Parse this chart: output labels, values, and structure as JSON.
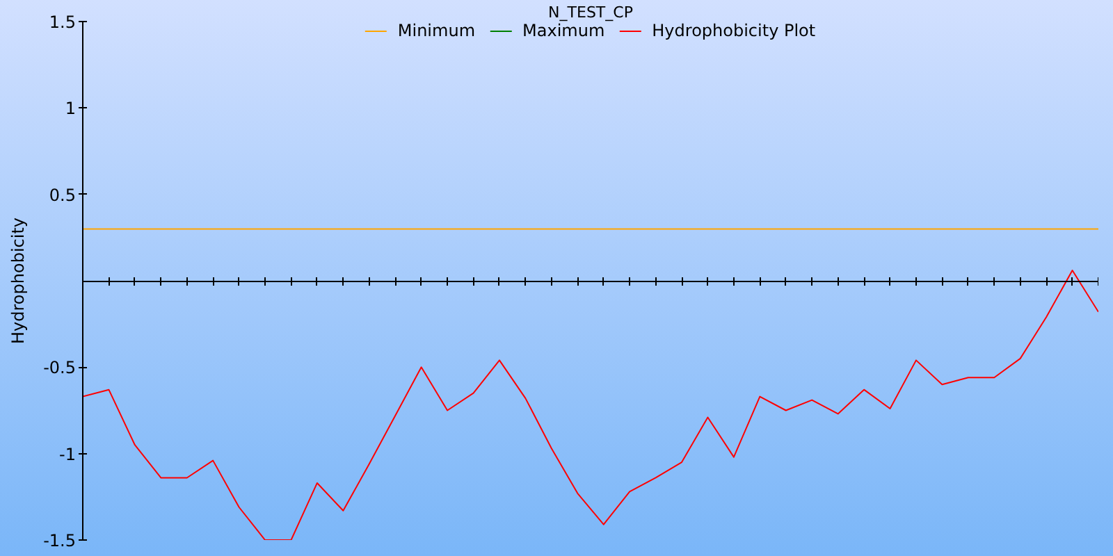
{
  "chart_data": {
    "type": "line",
    "title": "N_TEST_CP",
    "ylabel": "Hydrophobicity",
    "categories": [
      null,
      null,
      null,
      null,
      null,
      null,
      null,
      null,
      null,
      null,
      null,
      null,
      null,
      null,
      null,
      null,
      null,
      null,
      null,
      null,
      null,
      null,
      null,
      null,
      null,
      null,
      null,
      null,
      null,
      null,
      null,
      null,
      null,
      null,
      null,
      null,
      null,
      null,
      null,
      null
    ],
    "series": [
      {
        "name": "Minimum",
        "color": "#ffa500",
        "values": [
          0.3,
          0.3,
          0.3,
          0.3,
          0.3,
          0.3,
          0.3,
          0.3,
          0.3,
          0.3,
          0.3,
          0.3,
          0.3,
          0.3,
          0.3,
          0.3,
          0.3,
          0.3,
          0.3,
          0.3,
          0.3,
          0.3,
          0.3,
          0.3,
          0.3,
          0.3,
          0.3,
          0.3,
          0.3,
          0.3,
          0.3,
          0.3,
          0.3,
          0.3,
          0.3,
          0.3,
          0.3,
          0.3,
          0.3,
          0.3
        ]
      },
      {
        "name": "Maximum",
        "color": "#008000",
        "values": [
          null,
          null,
          null,
          null,
          null,
          null,
          null,
          null,
          null,
          null,
          null,
          null,
          null,
          null,
          null,
          null,
          null,
          null,
          null,
          null,
          null,
          null,
          null,
          null,
          null,
          null,
          null,
          null,
          null,
          null,
          null,
          null,
          null,
          null,
          null,
          null,
          null,
          null,
          null,
          null
        ]
      },
      {
        "name": "Hydrophobicity Plot",
        "color": "#ff0000",
        "values": [
          -0.67,
          -0.63,
          -0.95,
          -1.14,
          -1.14,
          -1.04,
          -1.31,
          -1.5,
          -1.5,
          -1.17,
          -1.33,
          -1.06,
          -0.78,
          -0.5,
          -0.75,
          -0.65,
          -0.46,
          -0.68,
          -0.97,
          -1.23,
          -1.41,
          -1.22,
          -1.14,
          -1.05,
          -0.79,
          -1.02,
          -0.67,
          -0.75,
          -0.69,
          -0.77,
          -0.63,
          -0.74,
          -0.46,
          -0.6,
          -0.56,
          -0.56,
          -0.45,
          -0.21,
          0.06,
          -0.18
        ]
      }
    ],
    "ylim": [
      -1.5,
      1.5
    ],
    "yticks": [
      -1.5,
      -1,
      -0.5,
      0.5,
      1,
      1.5
    ],
    "tick_labels": "y",
    "grid": false,
    "legend": "top"
  }
}
